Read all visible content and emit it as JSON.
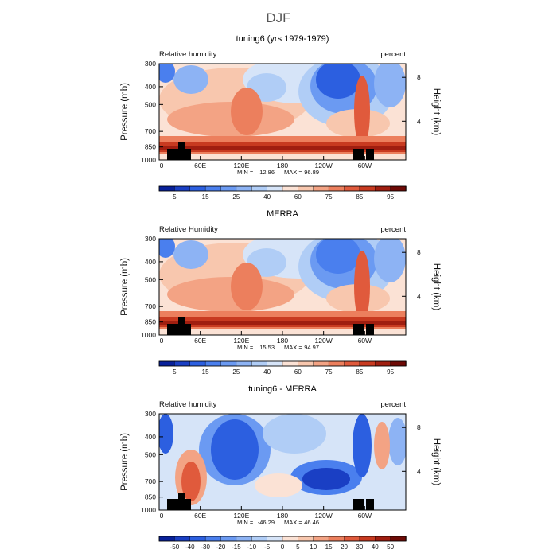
{
  "figure_title": "DJF",
  "chart_data": [
    {
      "type": "heatmap",
      "title": "tuning6 (yrs 1979-1979)",
      "left_label": "Relative humidity",
      "right_label": "percent",
      "ylabel": "Pressure (mb)",
      "y2label": "Height (km)",
      "yticks": [
        "300",
        "400",
        "500",
        "700",
        "850",
        "1000"
      ],
      "y2ticks": [
        "8",
        "4"
      ],
      "xticks": [
        "0",
        "60E",
        "120E",
        "180",
        "120W",
        "60W"
      ],
      "stats": {
        "min_label": "MIN =",
        "min": "12.86",
        "max_label": "MAX =",
        "max": "96.89"
      },
      "colorbar_levels": [
        5,
        10,
        15,
        20,
        25,
        30,
        40,
        50,
        60,
        70,
        75,
        80,
        85,
        90,
        95
      ],
      "colorbar_labels": [
        "5",
        "15",
        "25",
        "40",
        "60",
        "75",
        "85",
        "95"
      ],
      "diverging": false
    },
    {
      "type": "heatmap",
      "title": "MERRA",
      "left_label": "Relative Humidity",
      "right_label": "percent",
      "ylabel": "Pressure (mb)",
      "y2label": "Height (km)",
      "yticks": [
        "300",
        "400",
        "500",
        "700",
        "850",
        "1000"
      ],
      "y2ticks": [
        "8",
        "4"
      ],
      "xticks": [
        "0",
        "60E",
        "120E",
        "180",
        "120W",
        "60W"
      ],
      "stats": {
        "min_label": "MIN =",
        "min": "15.53",
        "max_label": "MAX =",
        "max": "94.97"
      },
      "colorbar_levels": [
        5,
        10,
        15,
        20,
        25,
        30,
        40,
        50,
        60,
        70,
        75,
        80,
        85,
        90,
        95
      ],
      "colorbar_labels": [
        "5",
        "15",
        "25",
        "40",
        "60",
        "75",
        "85",
        "95"
      ],
      "diverging": false
    },
    {
      "type": "heatmap",
      "title": "tuning6 - MERRA",
      "left_label": "Relative humidity",
      "right_label": "percent",
      "ylabel": "Pressure (mb)",
      "y2label": "Height (km)",
      "yticks": [
        "300",
        "400",
        "500",
        "700",
        "850",
        "1000"
      ],
      "y2ticks": [
        "8",
        "4"
      ],
      "xticks": [
        "0",
        "60E",
        "120E",
        "180",
        "120W",
        "60W"
      ],
      "stats": {
        "min_label": "MIN =",
        "min": "-46.29",
        "max_label": "MAX =",
        "max": "46.46"
      },
      "colorbar_levels": [
        -50,
        -40,
        -30,
        -20,
        -15,
        -10,
        -5,
        0,
        5,
        10,
        15,
        20,
        30,
        40,
        50
      ],
      "colorbar_labels": [
        "-50",
        "-40",
        "-30",
        "-20",
        "-15",
        "-10",
        "-5",
        "0",
        "5",
        "10",
        "15",
        "20",
        "30",
        "40",
        "50"
      ],
      "diverging": true
    }
  ],
  "colors": {
    "palette": [
      "#08209a",
      "#1a3fc4",
      "#2c5fe0",
      "#4a7fee",
      "#6b9af2",
      "#8db3f4",
      "#b0cdf6",
      "#d6e4f8",
      "#fbe2d5",
      "#f8c7ae",
      "#f3a384",
      "#ec7f5d",
      "#e05a3c",
      "#c83a20",
      "#a01e10",
      "#6e0a06"
    ],
    "terrain": "#000000",
    "frame": "#000000"
  }
}
